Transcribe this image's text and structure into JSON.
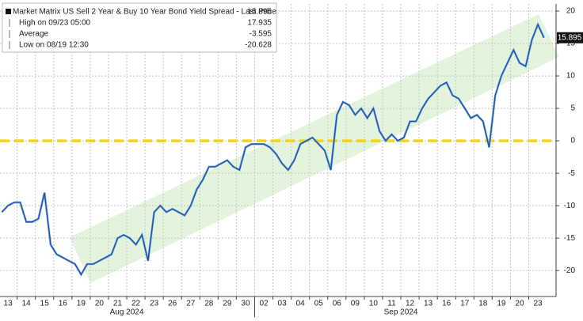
{
  "chart_data": {
    "type": "line",
    "legend_items": [
      {
        "label": "Market Matrix US Sell 2 Year & Buy 10 Year Bond Yield Spread - Last Price",
        "value": 15.895
      },
      {
        "label": "High on 09/23 05:00",
        "value": 17.935
      },
      {
        "label": "Average",
        "value": -3.595
      },
      {
        "label": "Low on 08/19 12:30",
        "value": -20.628
      }
    ],
    "categories": [
      null,
      "13",
      null,
      null,
      "14",
      null,
      null,
      "15",
      null,
      null,
      "16",
      null,
      null,
      "19",
      null,
      null,
      "20",
      null,
      null,
      "21",
      null,
      null,
      "22",
      null,
      null,
      "23",
      null,
      null,
      "26",
      null,
      null,
      "27",
      null,
      null,
      "28",
      null,
      null,
      "29",
      null,
      null,
      "30",
      null,
      null,
      "02",
      null,
      null,
      "03",
      null,
      null,
      "04",
      null,
      null,
      "05",
      null,
      null,
      "06",
      null,
      null,
      "09",
      null,
      null,
      "10",
      null,
      null,
      "11",
      null,
      null,
      "12",
      null,
      null,
      "13",
      null,
      null,
      "16",
      null,
      null,
      "17",
      null,
      null,
      "18",
      null,
      null,
      "19",
      null,
      null,
      "20",
      null,
      null,
      "23",
      null
    ],
    "month_labels": [
      "Aug 2024",
      "Sep 2024"
    ],
    "series": [
      {
        "name": "Market Matrix US Sell 2 Year & Buy 10 Year Bond Yield Spread - Last Price",
        "color": "#1f4f9e",
        "values": [
          -11,
          -10,
          -9.5,
          -9.5,
          -12.5,
          -12.5,
          -12,
          -8,
          -16,
          -17.5,
          -18,
          -18.5,
          -19,
          -20.628,
          -19,
          -19,
          -18.5,
          -18,
          -17.5,
          -15,
          -14.5,
          -15,
          -16,
          -14.5,
          -18.5,
          -11,
          -10,
          -11,
          -10.5,
          -11,
          -11.5,
          -10,
          -7.5,
          -6,
          -4,
          -4,
          -3.5,
          -3,
          -4,
          -4.5,
          -1,
          -0.5,
          -0.5,
          -0.5,
          -1,
          -2,
          -3.5,
          -4.5,
          -3,
          -0.5,
          0,
          0.5,
          -0.5,
          -1.5,
          -4.5,
          4,
          6,
          5.5,
          4,
          5,
          3.5,
          5,
          1.5,
          0,
          1,
          0,
          0.5,
          3,
          3,
          5,
          6.5,
          7.5,
          8.5,
          9,
          7,
          6.5,
          5,
          3.5,
          4,
          3,
          -1,
          7,
          10,
          12,
          14,
          12,
          11.5,
          15.5,
          17.935,
          15.895
        ]
      }
    ],
    "reference_line": {
      "value": 0,
      "color": "#f2d31b"
    },
    "ylim": [
      -24,
      21.1
    ],
    "yticks": [
      20,
      15,
      10,
      5,
      0,
      -5,
      -10,
      -15,
      -20
    ],
    "grid": true
  }
}
